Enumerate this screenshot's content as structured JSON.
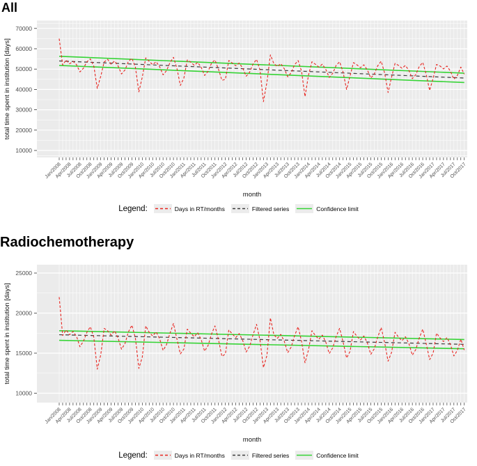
{
  "colors": {
    "red_series": "#e8241f",
    "filtered_series": "#3c3c3c",
    "confidence": "#35d435",
    "panel_bg": "#ebebeb",
    "gridline": "#ffffff",
    "tick_text": "#4d4d4d",
    "axis_text": "#111111"
  },
  "legend": {
    "label": "Legend:",
    "items": [
      {
        "name": "Days in RT/months",
        "style": "dashed",
        "color": "#e8241f"
      },
      {
        "name": "Filtered series",
        "style": "dashed",
        "color": "#3c3c3c"
      },
      {
        "name": "Confidence limit",
        "style": "solid",
        "color": "#35d435"
      }
    ]
  },
  "x_axis": {
    "label": "month",
    "months_start": "Jan/2008",
    "months_end": "Oct/2017",
    "n_months": 118,
    "tick_labels": [
      "Jan/2008",
      "Apr/2008",
      "Jul/2008",
      "Oct/2008",
      "Jan/2009",
      "Apr/2009",
      "Jul/2009",
      "Oct/2009",
      "Jan/2010",
      "Apr/2010",
      "Jul/2010",
      "Oct/2010",
      "Jan/2011",
      "Apr/2011",
      "Jul/2011",
      "Oct/2011",
      "Jan/2012",
      "Apr/2012",
      "Jul/2012",
      "Oct/2012",
      "Jan/2013",
      "Apr/2013",
      "Jul/2013",
      "Oct/2013",
      "Jan/2014",
      "Apr/2014",
      "Jul/2014",
      "Oct/2014",
      "Jan/2015",
      "Apr/2015",
      "Jul/2015",
      "Oct/2015",
      "Jan/2016",
      "Apr/2016",
      "Jul/2016",
      "Oct/2016",
      "Jan/2017",
      "Apr/2017",
      "Jul/2017",
      "Oct/2017"
    ]
  },
  "chart_data": [
    {
      "type": "line",
      "title": "All",
      "xlabel": "month",
      "ylabel": "total time spent in institution [days]",
      "ylim": [
        10000,
        70000
      ],
      "yticks": [
        10000,
        20000,
        30000,
        40000,
        50000,
        60000,
        70000
      ],
      "grid": "on",
      "legend_position": "bottom",
      "series": [
        {
          "name": "Days in RT/months",
          "style": "dashed",
          "color": "#e8241f",
          "values": [
            65000,
            52000,
            54500,
            52600,
            53800,
            52200,
            48600,
            50400,
            53600,
            55000,
            51500,
            40500,
            46500,
            53500,
            54800,
            52400,
            54000,
            51600,
            47600,
            49600,
            53800,
            55300,
            51000,
            38800,
            46000,
            55500,
            53800,
            52200,
            53600,
            51200,
            47200,
            49200,
            53200,
            55800,
            50500,
            42000,
            45500,
            54500,
            53400,
            51900,
            53300,
            50900,
            46900,
            48900,
            52900,
            54500,
            50000,
            44500,
            45000,
            54200,
            53000,
            51600,
            53000,
            50500,
            46500,
            48500,
            52500,
            54800,
            49500,
            34000,
            43500,
            57000,
            52700,
            51300,
            52700,
            50200,
            46200,
            48200,
            52200,
            54200,
            49000,
            36500,
            47000,
            53600,
            52400,
            51000,
            52400,
            49900,
            45900,
            47900,
            51900,
            53600,
            48500,
            40000,
            46500,
            53200,
            52100,
            50700,
            52100,
            49600,
            45600,
            47600,
            51600,
            53900,
            48000,
            38500,
            46000,
            52800,
            51800,
            50400,
            51800,
            49300,
            45300,
            47300,
            51300,
            53300,
            47500,
            39500,
            45500,
            52300,
            51500,
            50100,
            51500,
            49000,
            45000,
            46900,
            51000,
            47500
          ]
        },
        {
          "name": "Filtered series",
          "style": "dashed",
          "color": "#3c3c3c",
          "trend": [
            54000,
            45600
          ]
        },
        {
          "name": "Confidence limit",
          "style": "solid",
          "color": "#35d435",
          "upper": [
            56300,
            48000
          ],
          "lower": [
            51800,
            43400
          ]
        }
      ]
    },
    {
      "type": "line",
      "title": "Radiochemotherapy",
      "xlabel": "month",
      "ylabel": "total time spent in institution [days]",
      "ylim": [
        10000,
        25000
      ],
      "yticks": [
        10000,
        15000,
        20000,
        25000
      ],
      "grid": "on",
      "legend_position": "bottom",
      "series": [
        {
          "name": "Days in RT/months",
          "style": "dashed",
          "color": "#e8241f",
          "values": [
            22000,
            17200,
            17900,
            17300,
            17700,
            17100,
            15800,
            16500,
            17600,
            18300,
            17000,
            13000,
            14800,
            18100,
            17800,
            17250,
            17800,
            16900,
            15500,
            16200,
            17650,
            18500,
            16900,
            13100,
            14500,
            18400,
            17600,
            17150,
            17650,
            16800,
            15350,
            16050,
            17500,
            18700,
            16800,
            14900,
            15500,
            18000,
            17500,
            17050,
            17550,
            16700,
            15250,
            15950,
            17400,
            18400,
            16700,
            14600,
            14900,
            17900,
            17400,
            16950,
            17450,
            16600,
            15150,
            15850,
            17300,
            18600,
            16600,
            13200,
            14700,
            19400,
            17300,
            16850,
            17350,
            16500,
            15050,
            15750,
            17200,
            18300,
            16500,
            13800,
            15400,
            17800,
            17200,
            16750,
            17250,
            16400,
            14950,
            15650,
            17100,
            18100,
            16400,
            14400,
            15200,
            17700,
            17100,
            16650,
            17150,
            16300,
            14850,
            15550,
            17000,
            18200,
            16300,
            14000,
            15100,
            17600,
            17000,
            16550,
            17050,
            16200,
            14750,
            15450,
            16900,
            18000,
            16200,
            14200,
            15000,
            17500,
            16900,
            16450,
            16950,
            16100,
            14650,
            15350,
            16750,
            15400
          ]
        },
        {
          "name": "Filtered series",
          "style": "dashed",
          "color": "#3c3c3c",
          "trend": [
            17300,
            16100
          ]
        },
        {
          "name": "Confidence limit",
          "style": "solid",
          "color": "#35d435",
          "upper": [
            17800,
            16700
          ],
          "lower": [
            16600,
            15550
          ]
        }
      ]
    }
  ]
}
